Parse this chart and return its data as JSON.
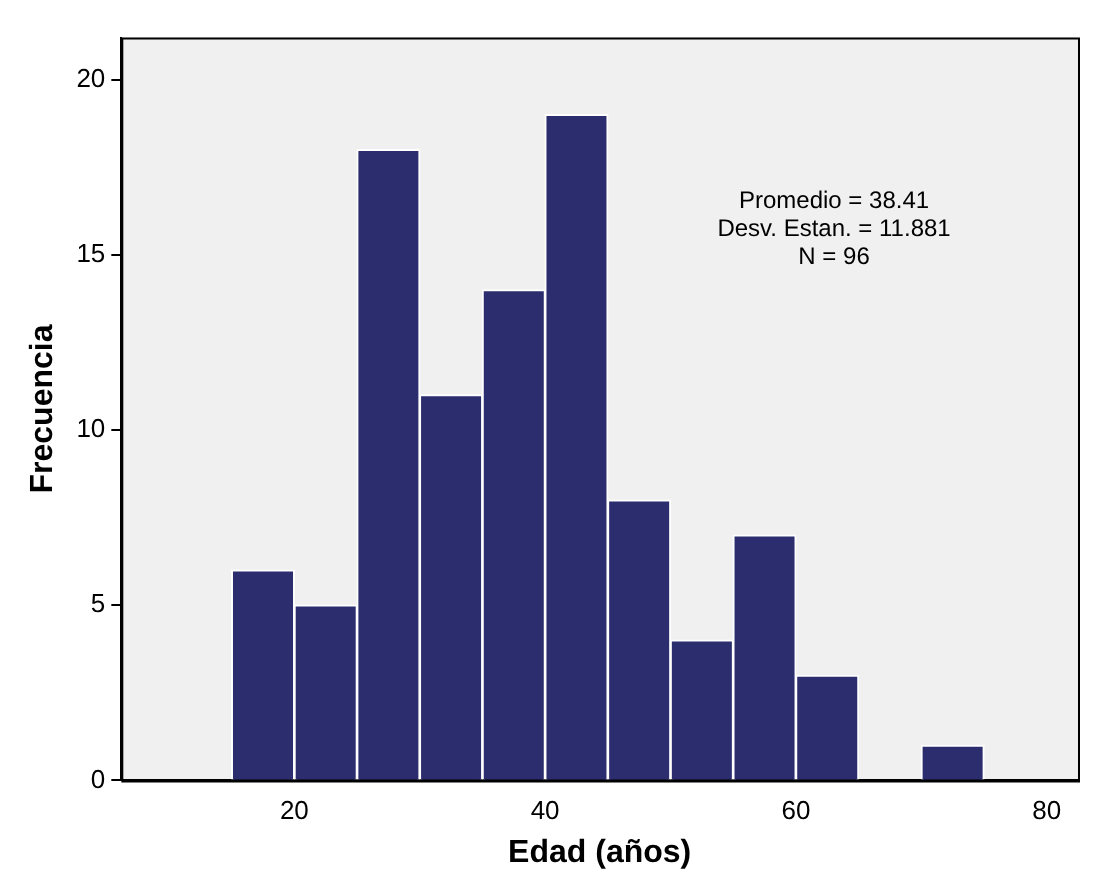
{
  "chart_data": {
    "type": "histogram",
    "xlabel": "Edad (años)",
    "ylabel": "Frecuencia",
    "bins": [
      15,
      20,
      25,
      30,
      35,
      40,
      45,
      50,
      55,
      60,
      65,
      70,
      75
    ],
    "values": [
      6,
      5,
      18,
      11,
      14,
      19,
      8,
      4,
      7,
      3,
      0,
      1
    ],
    "color": "#2b2d6e",
    "xlim": [
      6.2,
      82.5
    ],
    "xticks": [
      20,
      40,
      60,
      80
    ],
    "ylim": [
      0,
      21.2
    ],
    "yticks": [
      0,
      5,
      10,
      15,
      20
    ],
    "grid": false,
    "legend": false,
    "annotations": [
      "Promedio = 38.41",
      "Desv. Estan. = 11.881",
      "N = 96"
    ]
  }
}
